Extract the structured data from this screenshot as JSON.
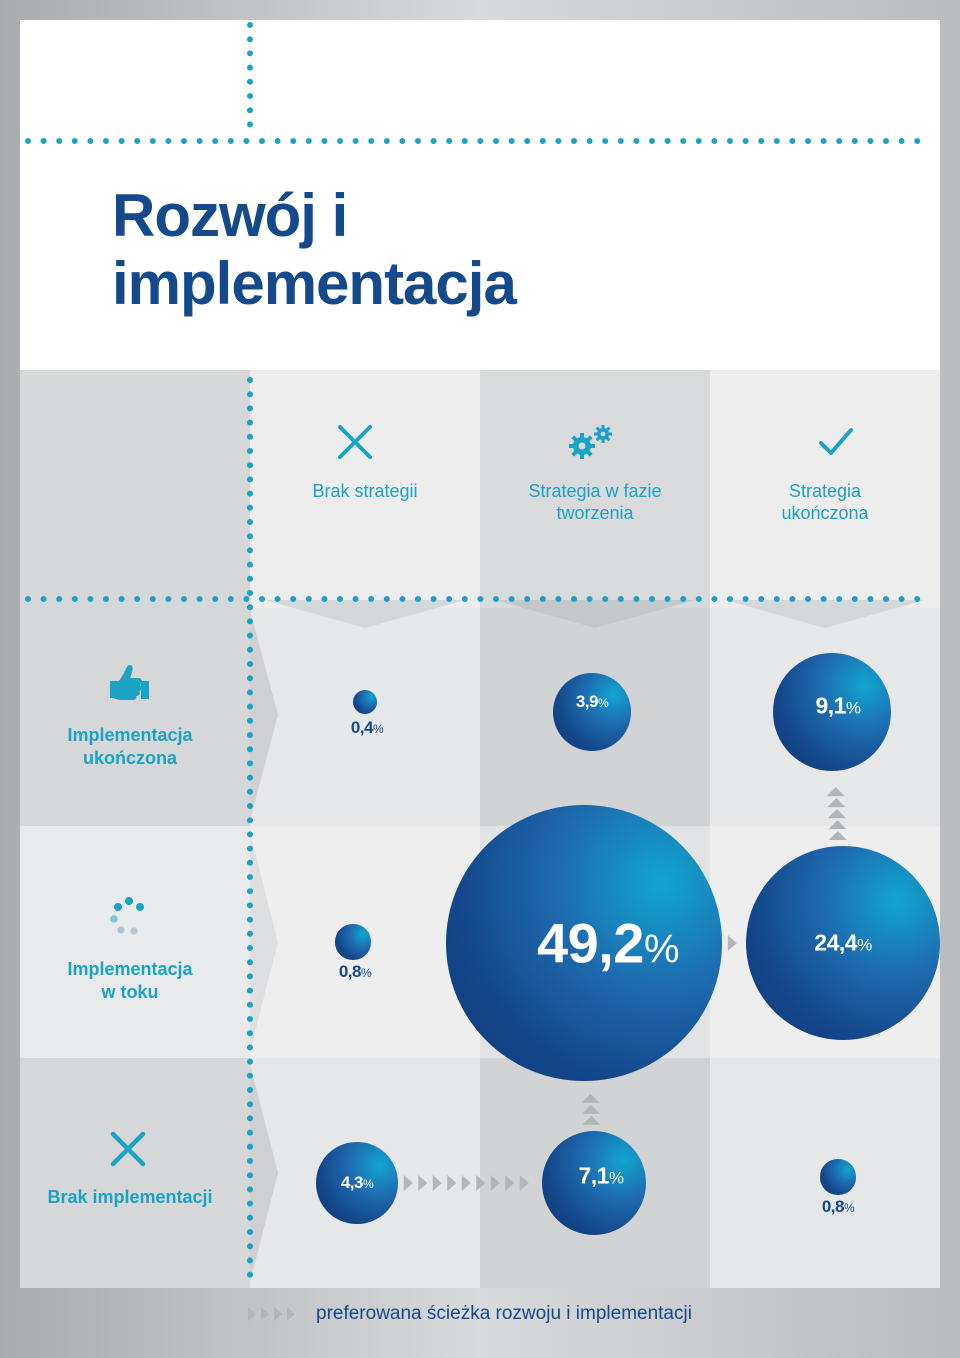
{
  "title": "Rozwój i\nimplementacja",
  "columns": [
    {
      "label": "Brak strategii",
      "icon": "x-icon"
    },
    {
      "label": "Strategia w fazie tworzenia",
      "icon": "gears-icon"
    },
    {
      "label": "Strategia ukończona",
      "icon": "checkmark-icon"
    }
  ],
  "rows": [
    {
      "label": "Implementacja ukończona",
      "icon": "thumbs-up-icon"
    },
    {
      "label": "Implementacja w toku",
      "icon": "loading-dots-icon"
    },
    {
      "label": "Brak implementacji",
      "icon": "x-icon"
    }
  ],
  "colors": {
    "dark_blue": "#14498c",
    "cyan": "#1ba3c6",
    "arrow_gray": "#b3b5b8"
  },
  "chart_data": {
    "type": "bubble-matrix",
    "x_categories": [
      "Brak strategii",
      "Strategia w fazie tworzenia",
      "Strategia ukończona"
    ],
    "y_categories": [
      "Implementacja ukończona",
      "Implementacja w toku",
      "Brak implementacji"
    ],
    "cells": [
      {
        "row": 0,
        "col": 0,
        "value": 0.4,
        "num": "0,4",
        "unit": "%"
      },
      {
        "row": 0,
        "col": 1,
        "value": 3.9,
        "num": "3,9",
        "unit": "%"
      },
      {
        "row": 0,
        "col": 2,
        "value": 9.1,
        "num": "9,1",
        "unit": "%"
      },
      {
        "row": 1,
        "col": 0,
        "value": 0.8,
        "num": "0,8",
        "unit": "%"
      },
      {
        "row": 1,
        "col": 1,
        "value": 49.2,
        "num": "49,2",
        "unit": "%"
      },
      {
        "row": 1,
        "col": 2,
        "value": 24.4,
        "num": "24,4",
        "unit": "%"
      },
      {
        "row": 2,
        "col": 0,
        "value": 4.3,
        "num": "4,3",
        "unit": "%"
      },
      {
        "row": 2,
        "col": 1,
        "value": 7.1,
        "num": "7,1",
        "unit": "%"
      },
      {
        "row": 2,
        "col": 2,
        "value": 0.8,
        "num": "0,8",
        "unit": "%"
      }
    ],
    "path_arrows": [
      {
        "from": [
          2,
          0
        ],
        "to": [
          2,
          1
        ]
      },
      {
        "from": [
          2,
          1
        ],
        "to": [
          1,
          1
        ]
      },
      {
        "from": [
          1,
          1
        ],
        "to": [
          1,
          2
        ]
      },
      {
        "from": [
          1,
          2
        ],
        "to": [
          0,
          2
        ]
      }
    ]
  },
  "legend": {
    "label": "preferowana ścieżka rozwoju i implementacji"
  }
}
